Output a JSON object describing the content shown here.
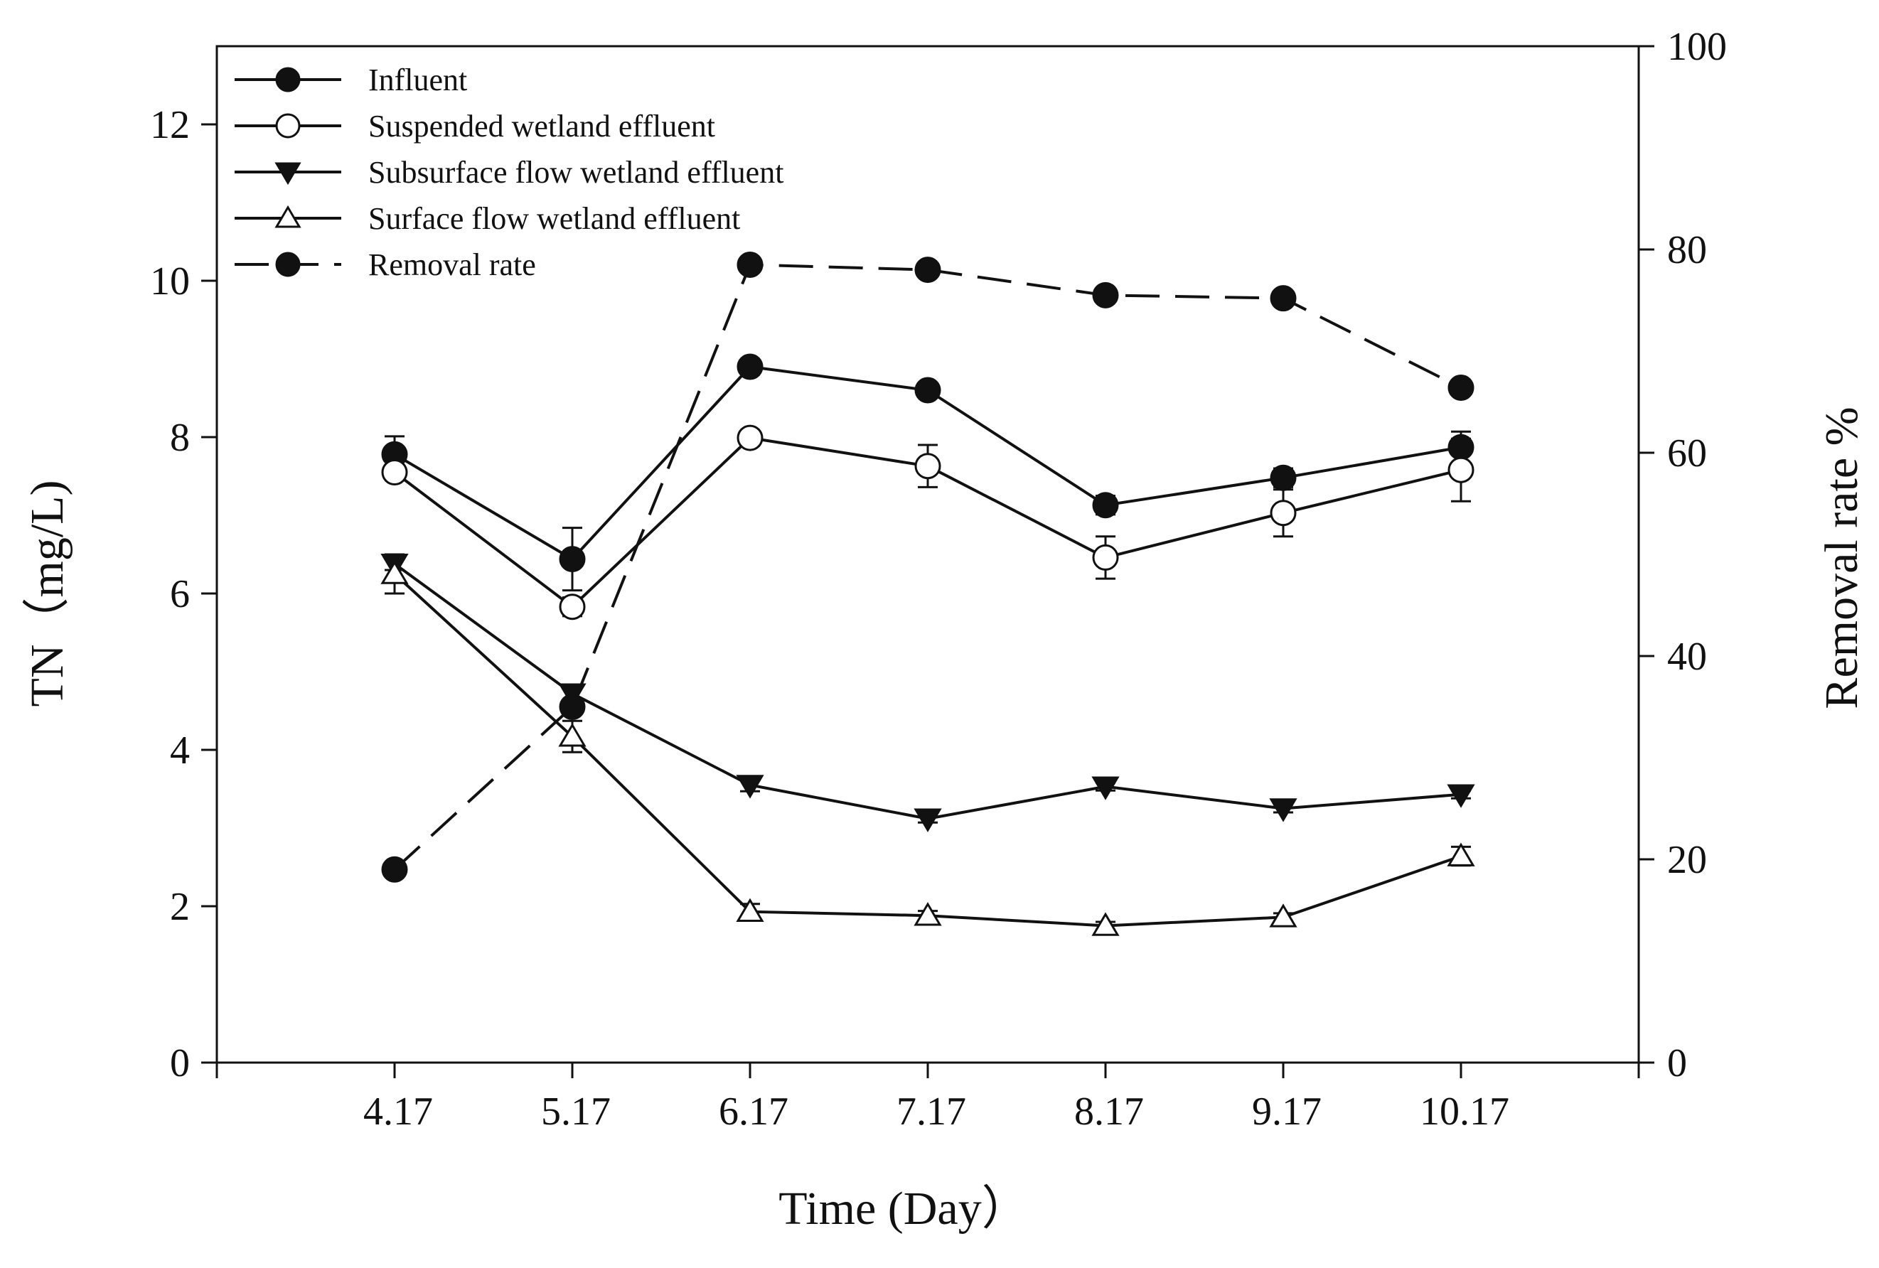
{
  "chart_data": {
    "type": "line",
    "xlabel": "Time (Day）",
    "ylabel": "TN（mg/L)",
    "y2label": "Removal rate %",
    "categories": [
      "4.17",
      "5.17",
      "6.17",
      "7.17",
      "8.17",
      "9.17",
      "10.17"
    ],
    "ylim": [
      0,
      13
    ],
    "yticks": [
      0,
      2,
      4,
      6,
      8,
      10,
      12
    ],
    "y2lim": [
      0,
      100
    ],
    "y2ticks": [
      0,
      20,
      40,
      60,
      80,
      100
    ],
    "legend_position": "top-left",
    "series": [
      {
        "name": "Influent",
        "axis": "left",
        "marker": "circle-filled",
        "line": "solid",
        "x": [
          4.17,
          5.17,
          6.17,
          7.17,
          8.17,
          9.17,
          10.17
        ],
        "values": [
          7.78,
          6.44,
          8.9,
          8.6,
          7.13,
          7.48,
          7.87
        ],
        "errors": [
          0.23,
          0.4,
          0.1,
          0.08,
          0.12,
          0.12,
          0.2
        ]
      },
      {
        "name": "Suspended wetland  effluent",
        "axis": "left",
        "marker": "circle-open",
        "line": "solid",
        "x": [
          4.17,
          5.17,
          6.17,
          7.17,
          8.17,
          9.17,
          10.17
        ],
        "values": [
          7.55,
          5.83,
          7.99,
          7.63,
          6.46,
          7.03,
          7.58
        ],
        "errors": [
          0.1,
          0.12,
          0.1,
          0.27,
          0.27,
          0.3,
          0.4
        ]
      },
      {
        "name": "Subsurface flow wetland effluent",
        "axis": "left",
        "marker": "triangle-down-filled",
        "line": "solid",
        "x": [
          4.17,
          5.17,
          6.17,
          7.17,
          8.17,
          9.17,
          10.17
        ],
        "values": [
          6.38,
          4.72,
          3.55,
          3.12,
          3.53,
          3.25,
          3.43
        ],
        "errors": [
          0.08,
          0.08,
          0.08,
          0.05,
          0.05,
          0.05,
          0.05
        ]
      },
      {
        "name": "Surface flow wetland  effluent",
        "axis": "left",
        "marker": "triangle-up-open",
        "line": "solid",
        "x": [
          4.17,
          5.17,
          6.17,
          7.17,
          8.17,
          9.17,
          10.17
        ],
        "values": [
          6.25,
          4.17,
          1.93,
          1.88,
          1.75,
          1.86,
          2.64
        ],
        "errors": [
          0.25,
          0.2,
          0.1,
          0.06,
          0.05,
          0.05,
          0.12
        ]
      },
      {
        "name": "Removal rate",
        "axis": "right",
        "marker": "circle-filled",
        "line": "dashed",
        "x": [
          4.17,
          5.17,
          6.17,
          7.17,
          8.17,
          9.17,
          10.17
        ],
        "values": [
          19,
          35,
          78.5,
          78,
          75.5,
          75.2,
          66.4
        ],
        "errors": []
      }
    ]
  }
}
